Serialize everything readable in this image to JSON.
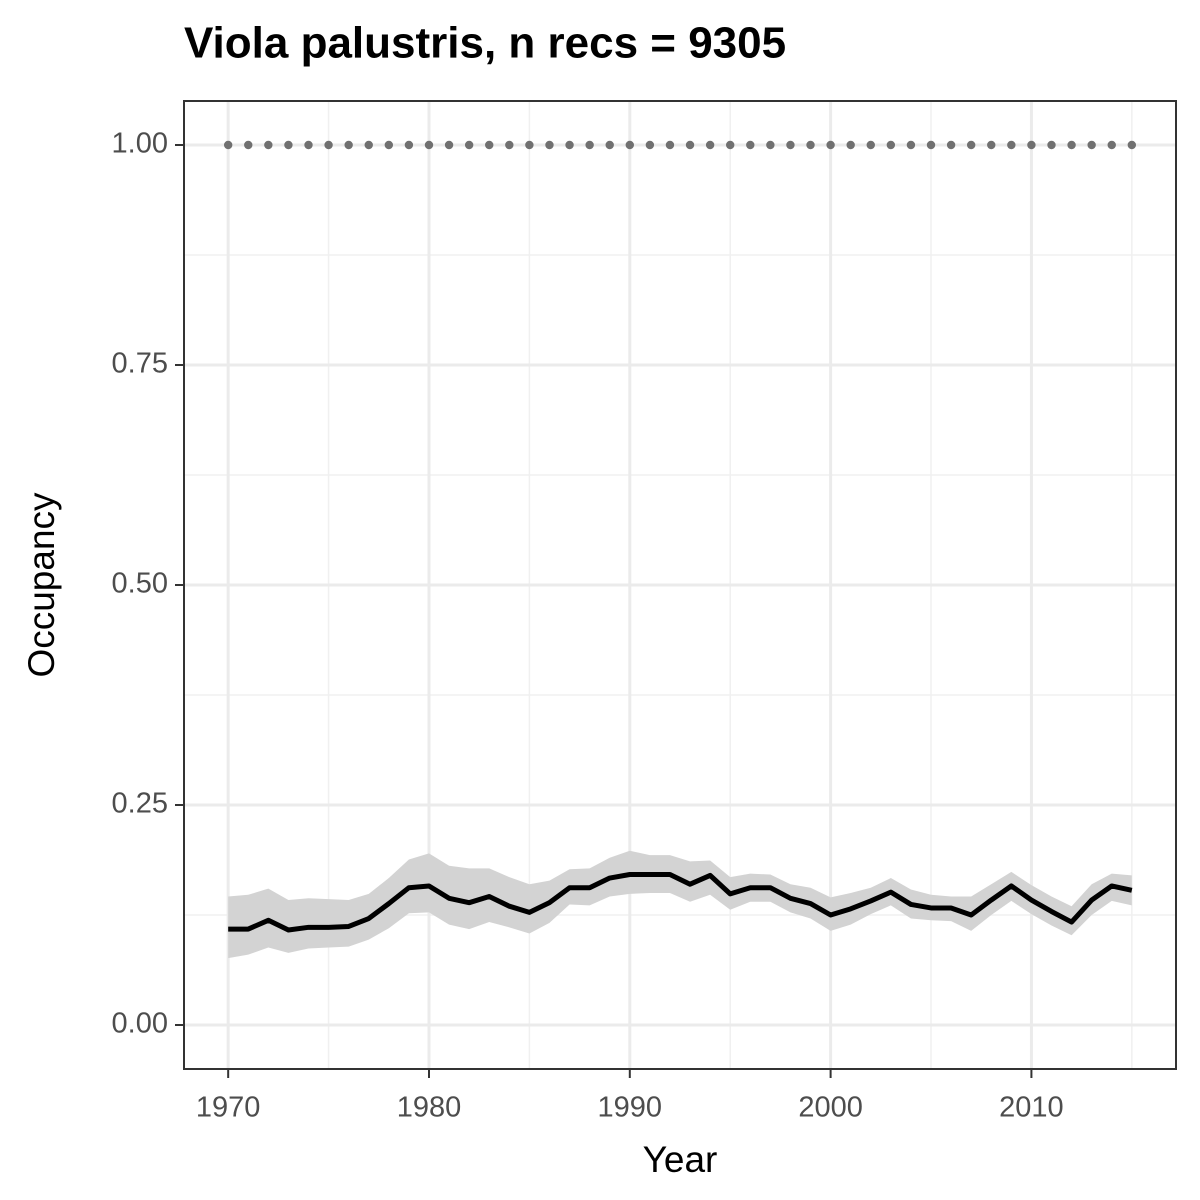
{
  "chart_data": {
    "type": "line",
    "title": "Viola palustris, n recs = 9305",
    "x_label": "Year",
    "y_label": "Occupancy",
    "x": [
      1970,
      1971,
      1972,
      1973,
      1974,
      1975,
      1976,
      1977,
      1978,
      1979,
      1980,
      1981,
      1982,
      1983,
      1984,
      1985,
      1986,
      1987,
      1988,
      1989,
      1990,
      1991,
      1992,
      1993,
      1994,
      1995,
      1996,
      1997,
      1998,
      1999,
      2000,
      2001,
      2002,
      2003,
      2004,
      2005,
      2006,
      2007,
      2008,
      2009,
      2010,
      2011,
      2012,
      2013,
      2014,
      2015
    ],
    "series": [
      {
        "color": "#707070",
        "style": "dotted",
        "values": [
          1,
          1,
          1,
          1,
          1,
          1,
          1,
          1,
          1,
          1,
          1,
          1,
          1,
          1,
          1,
          1,
          1,
          1,
          1,
          1,
          1,
          1,
          1,
          1,
          1,
          1,
          1,
          1,
          1,
          1,
          1,
          1,
          1,
          1,
          1,
          1,
          1,
          1,
          1,
          1,
          1,
          1,
          1,
          1,
          1,
          1
        ]
      },
      {
        "color": "#000000",
        "band_color": "#d3d3d3",
        "style": "solid",
        "values": [
          0.109,
          0.109,
          0.119,
          0.108,
          0.111,
          0.111,
          0.112,
          0.121,
          0.138,
          0.156,
          0.158,
          0.144,
          0.139,
          0.146,
          0.135,
          0.128,
          0.139,
          0.156,
          0.156,
          0.167,
          0.171,
          0.171,
          0.171,
          0.16,
          0.17,
          0.149,
          0.156,
          0.156,
          0.144,
          0.138,
          0.125,
          0.132,
          0.141,
          0.151,
          0.137,
          0.133,
          0.133,
          0.125,
          0.142,
          0.158,
          0.142,
          0.129,
          0.117,
          0.142,
          0.158,
          0.153
        ],
        "upper": [
          0.146,
          0.148,
          0.155,
          0.142,
          0.144,
          0.143,
          0.142,
          0.149,
          0.167,
          0.188,
          0.195,
          0.181,
          0.178,
          0.178,
          0.168,
          0.16,
          0.164,
          0.177,
          0.178,
          0.19,
          0.198,
          0.193,
          0.193,
          0.186,
          0.187,
          0.168,
          0.172,
          0.171,
          0.16,
          0.156,
          0.145,
          0.15,
          0.156,
          0.167,
          0.154,
          0.148,
          0.146,
          0.146,
          0.16,
          0.174,
          0.159,
          0.146,
          0.135,
          0.16,
          0.172,
          0.17
        ],
        "lower": [
          0.076,
          0.08,
          0.088,
          0.082,
          0.087,
          0.088,
          0.089,
          0.097,
          0.11,
          0.127,
          0.128,
          0.114,
          0.109,
          0.117,
          0.111,
          0.104,
          0.116,
          0.137,
          0.136,
          0.146,
          0.149,
          0.15,
          0.15,
          0.14,
          0.148,
          0.131,
          0.14,
          0.14,
          0.128,
          0.121,
          0.107,
          0.114,
          0.126,
          0.136,
          0.121,
          0.119,
          0.118,
          0.107,
          0.125,
          0.141,
          0.126,
          0.113,
          0.102,
          0.125,
          0.141,
          0.136
        ]
      }
    ],
    "xlim": [
      1967.8,
      2017.2
    ],
    "ylim": [
      -0.05,
      1.05
    ],
    "xticks": [
      1970,
      1980,
      1990,
      2000,
      2010
    ],
    "yticks": [
      {
        "value": 0,
        "label": "0.00"
      },
      {
        "value": 0.25,
        "label": "0.25"
      },
      {
        "value": 0.5,
        "label": "0.50"
      },
      {
        "value": 0.75,
        "label": "0.75"
      },
      {
        "value": 1,
        "label": "1.00"
      }
    ],
    "x_minor_ticks": [
      1975,
      1985,
      1995,
      2005,
      2015
    ],
    "y_minor_ticks": [
      0.125,
      0.375,
      0.625,
      0.875
    ],
    "grid": true
  }
}
